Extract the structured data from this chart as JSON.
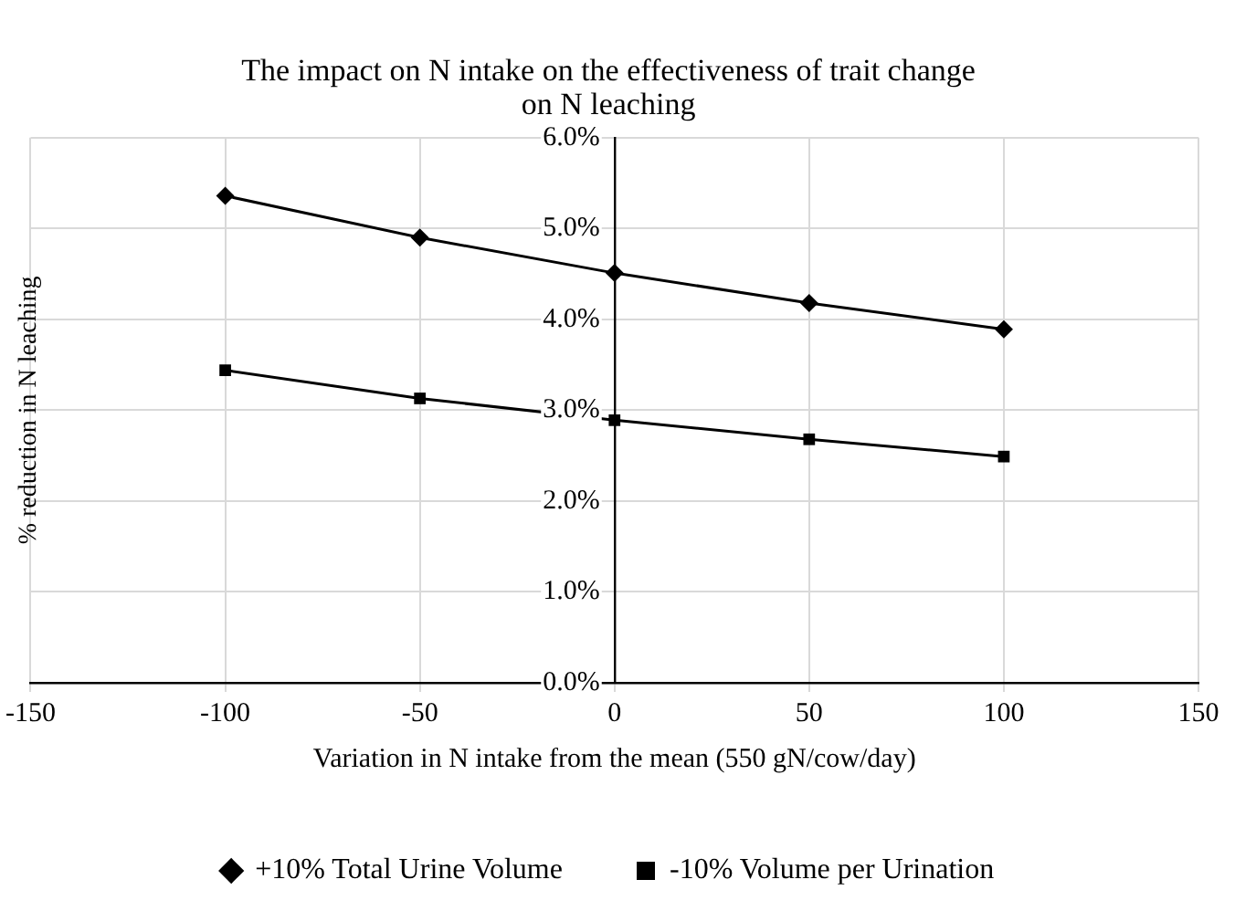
{
  "chart_data": {
    "type": "line",
    "title": [
      "The impact on N intake on the effectiveness of trait change",
      "on N leaching"
    ],
    "xlabel": "Variation in N intake from the mean (550 gN/cow/day)",
    "ylabel": "% reduction in N leaching",
    "x": [
      -100,
      -50,
      0,
      50,
      100
    ],
    "series": [
      {
        "name": "+10% Total Urine Volume",
        "color": "#000000",
        "marker": "diamond",
        "values": [
          5.36,
          4.9,
          4.51,
          4.18,
          3.89
        ]
      },
      {
        "name": "-10% Volume per Urination",
        "color": "#000000",
        "marker": "square",
        "values": [
          3.44,
          3.13,
          2.89,
          2.68,
          2.49
        ]
      }
    ],
    "xlim": [
      -150,
      150
    ],
    "xticks": [
      -150,
      -100,
      -50,
      0,
      50,
      100,
      150
    ],
    "ylim": [
      0,
      6
    ],
    "yticks": [
      {
        "value": 0,
        "label": "0.0%"
      },
      {
        "value": 1,
        "label": "1.0%"
      },
      {
        "value": 2,
        "label": "2.0%"
      },
      {
        "value": 3,
        "label": "3.0%"
      },
      {
        "value": 4,
        "label": "4.0%"
      },
      {
        "value": 5,
        "label": "5.0%"
      },
      {
        "value": 6,
        "label": "6.0%"
      }
    ],
    "grid": true,
    "legend": "bottom",
    "line_style": "solid"
  }
}
